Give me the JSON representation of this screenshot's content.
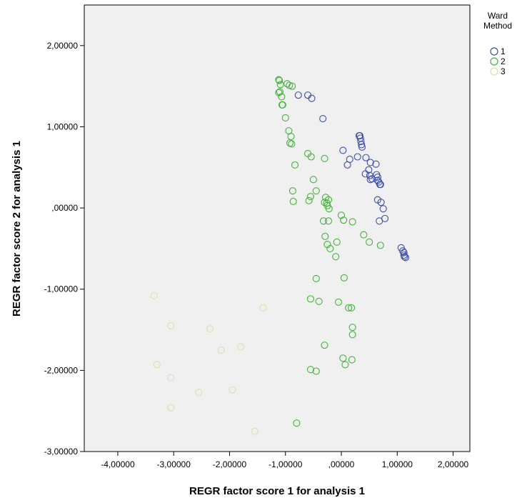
{
  "chart_data": {
    "type": "scatter",
    "title": "",
    "xlabel": "REGR factor score   1 for analysis 1",
    "ylabel": "REGR factor score   2 for analysis 1",
    "xlim": [
      -4.6,
      2.3
    ],
    "ylim": [
      -3.0,
      2.5
    ],
    "x_ticks": [
      -4,
      -3,
      -2,
      -1,
      0,
      1,
      2
    ],
    "x_tick_labels": [
      "-4,00000",
      "-3,00000",
      "-2,00000",
      "-1,00000",
      ",00000",
      "1,00000",
      "2,00000"
    ],
    "y_ticks": [
      -3,
      -2,
      -1,
      0,
      1,
      2
    ],
    "y_tick_labels": [
      "-3,00000",
      "-2,00000",
      "-1,00000",
      ",00000",
      "1,00000",
      "2,00000"
    ],
    "grid": false,
    "plot_background": "#f0f0f0",
    "marker": "open-circle",
    "legend": {
      "title_lines": [
        "Ward",
        "Method"
      ],
      "position": "right"
    },
    "series": [
      {
        "name": "1",
        "color": "#3b4ea8",
        "points": [
          [
            -0.77,
            1.39
          ],
          [
            -0.6,
            1.39
          ],
          [
            -0.53,
            1.35
          ],
          [
            -0.33,
            1.1
          ],
          [
            0.32,
            0.89
          ],
          [
            0.33,
            0.89
          ],
          [
            0.34,
            0.86
          ],
          [
            0.35,
            0.82
          ],
          [
            0.36,
            0.78
          ],
          [
            0.37,
            0.75
          ],
          [
            0.03,
            0.71
          ],
          [
            0.29,
            0.63
          ],
          [
            0.15,
            0.6
          ],
          [
            0.11,
            0.53
          ],
          [
            0.44,
            0.62
          ],
          [
            0.52,
            0.56
          ],
          [
            0.62,
            0.54
          ],
          [
            0.49,
            0.47
          ],
          [
            0.43,
            0.42
          ],
          [
            0.51,
            0.4
          ],
          [
            0.55,
            0.36
          ],
          [
            0.52,
            0.35
          ],
          [
            0.63,
            0.41
          ],
          [
            0.65,
            0.38
          ],
          [
            0.65,
            0.34
          ],
          [
            0.67,
            0.32
          ],
          [
            0.69,
            0.29
          ],
          [
            0.7,
            0.29
          ],
          [
            0.65,
            0.1
          ],
          [
            0.71,
            0.07
          ],
          [
            0.75,
            -0.01
          ],
          [
            0.78,
            -0.13
          ],
          [
            0.68,
            -0.16
          ],
          [
            1.07,
            -0.49
          ],
          [
            1.1,
            -0.53
          ],
          [
            1.12,
            -0.55
          ],
          [
            1.12,
            -0.58
          ],
          [
            1.13,
            -0.6
          ],
          [
            1.15,
            -0.61
          ]
        ]
      },
      {
        "name": "2",
        "color": "#43b23a",
        "points": [
          [
            -1.12,
            1.58
          ],
          [
            -1.11,
            1.57
          ],
          [
            -1.09,
            1.52
          ],
          [
            -0.97,
            1.53
          ],
          [
            -0.93,
            1.51
          ],
          [
            -0.88,
            1.5
          ],
          [
            -1.1,
            1.43
          ],
          [
            -1.12,
            1.42
          ],
          [
            -1.07,
            1.37
          ],
          [
            -1.06,
            1.27
          ],
          [
            -1.05,
            1.27
          ],
          [
            -1.0,
            1.11
          ],
          [
            -0.94,
            0.95
          ],
          [
            -0.9,
            0.88
          ],
          [
            -0.92,
            0.8
          ],
          [
            -0.89,
            0.79
          ],
          [
            -0.6,
            0.67
          ],
          [
            -0.54,
            0.63
          ],
          [
            -0.3,
            0.61
          ],
          [
            -0.83,
            0.53
          ],
          [
            -0.5,
            0.35
          ],
          [
            -0.45,
            0.21
          ],
          [
            -0.87,
            0.21
          ],
          [
            -0.55,
            0.14
          ],
          [
            -0.58,
            0.09
          ],
          [
            -0.86,
            0.08
          ],
          [
            -0.28,
            0.13
          ],
          [
            -0.23,
            0.1
          ],
          [
            -0.3,
            0.07
          ],
          [
            -0.26,
            0.06
          ],
          [
            -0.25,
            0.03
          ],
          [
            -0.22,
            -0.01
          ],
          [
            0.0,
            -0.09
          ],
          [
            -0.32,
            -0.16
          ],
          [
            -0.23,
            -0.16
          ],
          [
            0.04,
            -0.15
          ],
          [
            0.2,
            -0.17
          ],
          [
            -0.29,
            -0.35
          ],
          [
            0.4,
            -0.33
          ],
          [
            -0.25,
            -0.45
          ],
          [
            -0.08,
            -0.42
          ],
          [
            -0.2,
            -0.5
          ],
          [
            0.5,
            -0.42
          ],
          [
            0.7,
            -0.46
          ],
          [
            -0.1,
            -0.6
          ],
          [
            -0.45,
            -0.87
          ],
          [
            0.05,
            -0.86
          ],
          [
            -0.55,
            -1.12
          ],
          [
            -0.4,
            -1.15
          ],
          [
            -0.05,
            -1.16
          ],
          [
            0.13,
            -1.23
          ],
          [
            0.18,
            -1.23
          ],
          [
            0.2,
            -1.47
          ],
          [
            0.2,
            -1.56
          ],
          [
            -0.3,
            -1.69
          ],
          [
            0.03,
            -1.85
          ],
          [
            0.07,
            -1.93
          ],
          [
            0.19,
            -1.87
          ],
          [
            -0.55,
            -1.99
          ],
          [
            -0.45,
            -2.01
          ],
          [
            -0.8,
            -2.65
          ]
        ]
      },
      {
        "name": "3",
        "color": "#e0ddaa",
        "points": [
          [
            -3.35,
            -1.08
          ],
          [
            -1.4,
            -1.23
          ],
          [
            -3.05,
            -1.45
          ],
          [
            -2.35,
            -1.49
          ],
          [
            -2.15,
            -1.75
          ],
          [
            -1.8,
            -1.71
          ],
          [
            -3.3,
            -1.93
          ],
          [
            -3.05,
            -2.09
          ],
          [
            -2.55,
            -2.27
          ],
          [
            -1.95,
            -2.24
          ],
          [
            -3.05,
            -2.46
          ],
          [
            -1.55,
            -2.75
          ]
        ]
      }
    ]
  }
}
